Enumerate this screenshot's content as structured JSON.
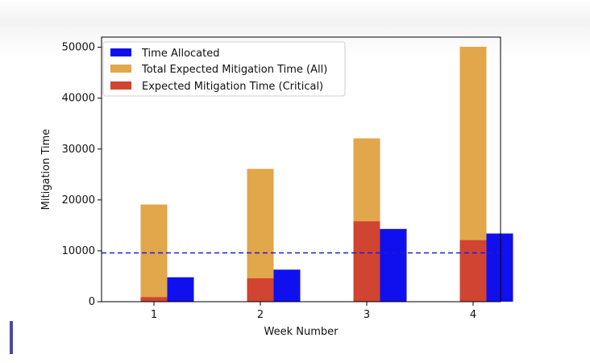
{
  "chart_data": {
    "type": "bar",
    "categories": [
      "1",
      "2",
      "3",
      "4"
    ],
    "xlabel": "Week Number",
    "ylabel": "Mitigation Time",
    "ylim": [
      0,
      52000
    ],
    "yticks": [
      0,
      10000,
      20000,
      30000,
      40000,
      50000
    ],
    "series": [
      {
        "name": "Time Allocated",
        "values": [
          4800,
          6300,
          14300,
          13400
        ],
        "color": "#1010ee"
      },
      {
        "name": "Total Expected Mitigation Time (All)",
        "values": [
          19100,
          26100,
          32100,
          50100
        ],
        "color": "#e2a64b"
      },
      {
        "name": "Expected Mitigation Time (Critical)",
        "values": [
          900,
          4600,
          15800,
          12100
        ],
        "color": "#d04431"
      }
    ],
    "reference_line": {
      "value": 9600,
      "style": "dashed",
      "color": "#1a1ad6"
    },
    "legend_position": "top-left",
    "grid": false
  }
}
